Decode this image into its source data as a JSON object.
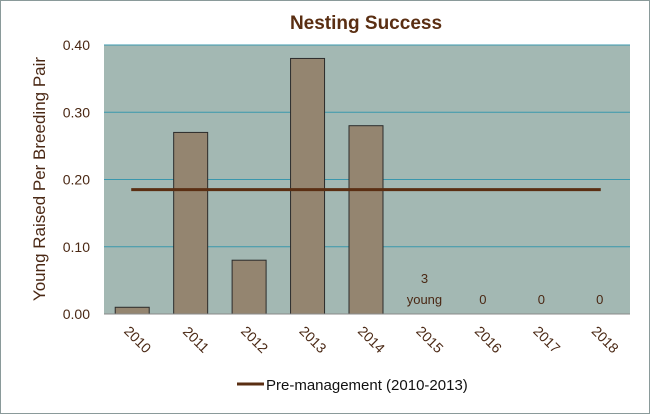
{
  "chart_data": {
    "type": "bar",
    "title": "Nesting Success",
    "ylabel": "Young Raised  Per Breeding  Pair",
    "xlabel": "",
    "ylim": [
      0,
      0.4
    ],
    "yticks": [
      "0.00",
      "0.10",
      "0.20",
      "0.30",
      "0.40"
    ],
    "grid": true,
    "categories": [
      "2010",
      "2011",
      "2012",
      "2013",
      "2014",
      "2015",
      "2016",
      "2017",
      "2018"
    ],
    "series": [
      {
        "values": [
          0.01,
          0.27,
          0.08,
          0.38,
          0.28,
          null,
          null,
          null,
          null
        ]
      }
    ],
    "annotations": [
      {
        "category": "2015",
        "lines": [
          "3",
          "young"
        ]
      },
      {
        "category": "2016",
        "lines": [
          "0"
        ]
      },
      {
        "category": "2017",
        "lines": [
          "0"
        ]
      },
      {
        "category": "2018",
        "lines": [
          "0"
        ]
      }
    ],
    "reference_line": {
      "label": "Pre-management (2010-2013)",
      "value": 0.185,
      "from_category": "2010",
      "to_category": "2018"
    },
    "legend_position": "bottom",
    "colors": {
      "plot_background": "#a3b8b3",
      "bar_fill": "#948570",
      "bar_stroke": "#2b2b2b",
      "reference_line": "#5a2e12",
      "title_text": "#5a2e12",
      "axis_text": "#4a2814",
      "gridline": "#3a97ad",
      "outer_border": "#8a9a9a"
    }
  }
}
